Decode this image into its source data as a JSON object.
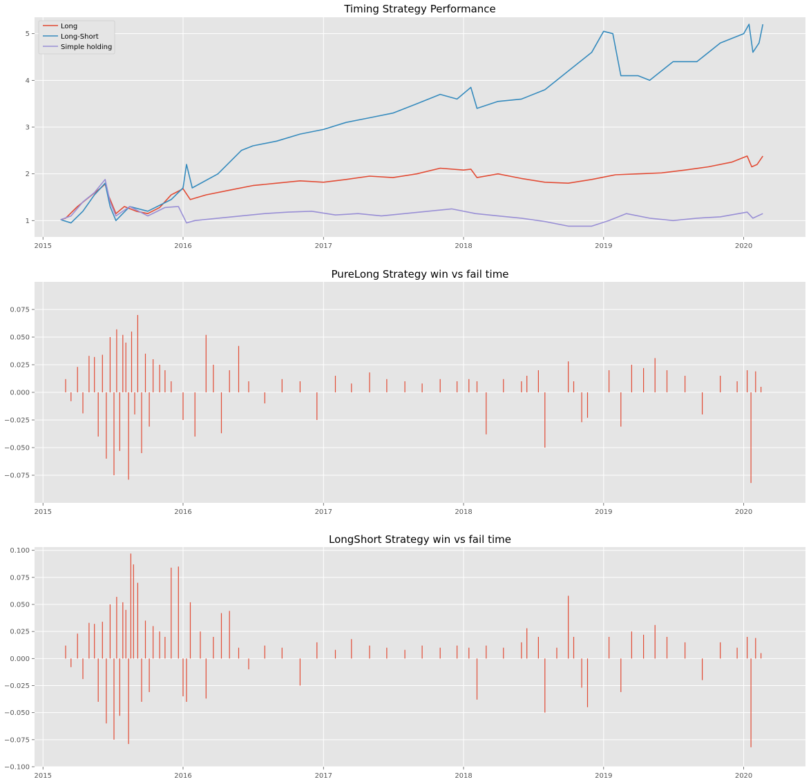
{
  "chart_data": [
    {
      "type": "line",
      "title": "Timing Strategy Performance",
      "xlabel": "",
      "ylabel": "",
      "x_ticks": [
        "2015",
        "2016",
        "2017",
        "2018",
        "2019",
        "2020"
      ],
      "y_ticks": [
        "1",
        "2",
        "3",
        "4",
        "5"
      ],
      "xlim": [
        "2014-12-10",
        "2020-06-10"
      ],
      "ylim": [
        0.65,
        5.35
      ],
      "grid": true,
      "legend": "top-left",
      "series": [
        {
          "name": "Long",
          "color": "#E24A33",
          "x": [
            "2015-02-16",
            "2015-03-01",
            "2015-04-01",
            "2015-05-01",
            "2015-06-01",
            "2015-06-12",
            "2015-06-20",
            "2015-07-10",
            "2015-08-01",
            "2015-09-01",
            "2015-10-01",
            "2015-11-01",
            "2015-12-01",
            "2016-01-01",
            "2016-01-20",
            "2016-03-01",
            "2016-05-01",
            "2016-07-01",
            "2016-09-01",
            "2016-11-01",
            "2017-01-01",
            "2017-03-01",
            "2017-05-01",
            "2017-07-01",
            "2017-09-01",
            "2017-11-01",
            "2018-01-01",
            "2018-01-20",
            "2018-02-05",
            "2018-04-01",
            "2018-06-01",
            "2018-08-01",
            "2018-10-01",
            "2018-12-01",
            "2019-02-01",
            "2019-04-01",
            "2019-06-01",
            "2019-08-01",
            "2019-10-01",
            "2019-12-01",
            "2020-01-10",
            "2020-01-22",
            "2020-02-05",
            "2020-02-20"
          ],
          "y": [
            1.02,
            1.05,
            1.3,
            1.5,
            1.7,
            1.78,
            1.55,
            1.15,
            1.3,
            1.2,
            1.15,
            1.28,
            1.55,
            1.68,
            1.45,
            1.55,
            1.65,
            1.75,
            1.8,
            1.85,
            1.82,
            1.88,
            1.95,
            1.92,
            2.0,
            2.12,
            2.08,
            2.1,
            1.92,
            2.0,
            1.9,
            1.82,
            1.8,
            1.88,
            1.98,
            2.0,
            2.02,
            2.08,
            2.15,
            2.25,
            2.38,
            2.15,
            2.2,
            2.38
          ]
        },
        {
          "name": "Long-Short",
          "color": "#348ABD",
          "x": [
            "2015-02-16",
            "2015-03-15",
            "2015-04-15",
            "2015-05-15",
            "2015-06-12",
            "2015-06-25",
            "2015-07-10",
            "2015-08-15",
            "2015-10-01",
            "2015-12-01",
            "2016-01-01",
            "2016-01-10",
            "2016-01-25",
            "2016-04-01",
            "2016-06-01",
            "2016-07-01",
            "2016-09-01",
            "2016-11-01",
            "2017-01-01",
            "2017-03-01",
            "2017-05-01",
            "2017-07-01",
            "2017-09-01",
            "2017-11-01",
            "2017-12-15",
            "2018-01-20",
            "2018-02-05",
            "2018-04-01",
            "2018-06-01",
            "2018-08-01",
            "2018-10-01",
            "2018-12-01",
            "2019-01-01",
            "2019-01-25",
            "2019-02-15",
            "2019-04-01",
            "2019-05-01",
            "2019-07-01",
            "2019-09-01",
            "2019-11-01",
            "2020-01-01",
            "2020-01-15",
            "2020-01-25",
            "2020-02-10",
            "2020-02-20"
          ],
          "y": [
            1.02,
            0.95,
            1.2,
            1.55,
            1.8,
            1.3,
            1.0,
            1.3,
            1.2,
            1.45,
            1.7,
            2.2,
            1.7,
            2.0,
            2.5,
            2.6,
            2.7,
            2.85,
            2.95,
            3.1,
            3.2,
            3.3,
            3.5,
            3.7,
            3.6,
            3.85,
            3.4,
            3.55,
            3.6,
            3.8,
            4.2,
            4.6,
            5.05,
            5.0,
            4.1,
            4.1,
            4.0,
            4.4,
            4.4,
            4.8,
            5.0,
            5.2,
            4.6,
            4.8,
            5.2
          ]
        },
        {
          "name": "Simple holding",
          "color": "#988ED5",
          "x": [
            "2015-02-16",
            "2015-03-15",
            "2015-04-15",
            "2015-05-15",
            "2015-06-12",
            "2015-06-25",
            "2015-07-10",
            "2015-08-15",
            "2015-10-01",
            "2015-11-15",
            "2015-12-20",
            "2016-01-10",
            "2016-02-01",
            "2016-04-01",
            "2016-06-01",
            "2016-08-01",
            "2016-10-01",
            "2016-12-01",
            "2017-02-01",
            "2017-04-01",
            "2017-06-01",
            "2017-08-01",
            "2017-10-01",
            "2017-12-01",
            "2018-02-01",
            "2018-04-01",
            "2018-06-01",
            "2018-08-01",
            "2018-10-01",
            "2018-12-01",
            "2019-01-15",
            "2019-03-01",
            "2019-05-01",
            "2019-07-01",
            "2019-09-01",
            "2019-11-01",
            "2020-01-10",
            "2020-01-25",
            "2020-02-20"
          ],
          "y": [
            1.02,
            1.1,
            1.4,
            1.6,
            1.88,
            1.4,
            1.1,
            1.3,
            1.1,
            1.28,
            1.3,
            0.95,
            1.0,
            1.05,
            1.1,
            1.15,
            1.18,
            1.2,
            1.12,
            1.15,
            1.1,
            1.15,
            1.2,
            1.25,
            1.15,
            1.1,
            1.05,
            0.98,
            0.88,
            0.88,
            1.0,
            1.15,
            1.05,
            1.0,
            1.05,
            1.08,
            1.18,
            1.05,
            1.15
          ]
        }
      ]
    },
    {
      "type": "bar",
      "title": "PureLong Strategy win vs fail time",
      "xlabel": "",
      "ylabel": "",
      "x_ticks": [
        "2015",
        "2016",
        "2017",
        "2018",
        "2019",
        "2020"
      ],
      "y_ticks": [
        "−0.075",
        "−0.050",
        "−0.025",
        "0.000",
        "0.025",
        "0.050",
        "0.075"
      ],
      "xlim": [
        "2014-12-10",
        "2020-06-10"
      ],
      "ylim": [
        -0.1,
        0.1
      ],
      "grid": true,
      "color": "#E24A33",
      "x": [
        "2015-03-01",
        "2015-03-15",
        "2015-04-01",
        "2015-04-15",
        "2015-05-01",
        "2015-05-15",
        "2015-05-25",
        "2015-06-05",
        "2015-06-15",
        "2015-06-25",
        "2015-07-05",
        "2015-07-12",
        "2015-07-20",
        "2015-07-28",
        "2015-08-05",
        "2015-08-12",
        "2015-08-20",
        "2015-08-28",
        "2015-09-05",
        "2015-09-15",
        "2015-09-25",
        "2015-10-05",
        "2015-10-15",
        "2015-11-01",
        "2015-11-15",
        "2015-12-01",
        "2016-01-01",
        "2016-02-01",
        "2016-03-01",
        "2016-03-20",
        "2016-04-10",
        "2016-05-01",
        "2016-05-25",
        "2016-06-20",
        "2016-08-01",
        "2016-09-15",
        "2016-11-01",
        "2016-12-15",
        "2017-02-01",
        "2017-03-15",
        "2017-05-01",
        "2017-06-15",
        "2017-08-01",
        "2017-09-15",
        "2017-11-01",
        "2017-12-15",
        "2018-01-15",
        "2018-02-05",
        "2018-03-01",
        "2018-04-15",
        "2018-06-01",
        "2018-06-15",
        "2018-07-15",
        "2018-08-01",
        "2018-10-01",
        "2018-10-15",
        "2018-11-05",
        "2018-11-20",
        "2019-01-15",
        "2019-02-15",
        "2019-03-15",
        "2019-04-15",
        "2019-05-15",
        "2019-06-15",
        "2019-08-01",
        "2019-09-15",
        "2019-11-01",
        "2019-12-15",
        "2020-01-10",
        "2020-01-20",
        "2020-02-01",
        "2020-02-15"
      ],
      "values": [
        0.012,
        -0.008,
        0.023,
        -0.019,
        0.033,
        0.032,
        -0.04,
        0.034,
        -0.06,
        0.05,
        -0.075,
        0.057,
        -0.053,
        0.052,
        0.045,
        -0.079,
        0.055,
        -0.02,
        0.07,
        -0.055,
        0.035,
        -0.031,
        0.03,
        0.025,
        0.02,
        0.01,
        -0.025,
        -0.04,
        0.052,
        0.025,
        -0.037,
        0.02,
        0.042,
        0.01,
        -0.01,
        0.012,
        0.01,
        -0.025,
        0.015,
        0.008,
        0.018,
        0.012,
        0.01,
        0.008,
        0.012,
        0.01,
        0.012,
        0.01,
        -0.038,
        0.012,
        0.01,
        0.015,
        0.02,
        -0.05,
        0.028,
        0.01,
        -0.027,
        -0.023,
        0.02,
        -0.031,
        0.025,
        0.022,
        0.031,
        0.02,
        0.015,
        -0.02,
        0.015,
        0.01,
        0.02,
        -0.082,
        0.019,
        0.005
      ]
    },
    {
      "type": "bar",
      "title": "LongShort Strategy win vs fail time",
      "xlabel": "",
      "ylabel": "",
      "x_ticks": [
        "2015",
        "2016",
        "2017",
        "2018",
        "2019",
        "2020"
      ],
      "y_ticks": [
        "−0.100",
        "−0.075",
        "−0.050",
        "−0.025",
        "0.000",
        "0.025",
        "0.050",
        "0.075",
        "0.100"
      ],
      "xlim": [
        "2014-12-10",
        "2020-06-10"
      ],
      "ylim": [
        -0.1,
        0.103
      ],
      "grid": true,
      "color": "#E24A33",
      "x": [
        "2015-03-01",
        "2015-03-15",
        "2015-04-01",
        "2015-04-15",
        "2015-05-01",
        "2015-05-15",
        "2015-05-25",
        "2015-06-05",
        "2015-06-15",
        "2015-06-25",
        "2015-07-05",
        "2015-07-12",
        "2015-07-20",
        "2015-07-28",
        "2015-08-05",
        "2015-08-12",
        "2015-08-18",
        "2015-08-25",
        "2015-09-05",
        "2015-09-15",
        "2015-09-25",
        "2015-10-05",
        "2015-10-15",
        "2015-11-01",
        "2015-11-15",
        "2015-12-01",
        "2015-12-20",
        "2016-01-01",
        "2016-01-10",
        "2016-01-20",
        "2016-02-15",
        "2016-03-01",
        "2016-03-20",
        "2016-04-10",
        "2016-05-01",
        "2016-05-25",
        "2016-06-20",
        "2016-08-01",
        "2016-09-15",
        "2016-11-01",
        "2016-12-15",
        "2017-02-01",
        "2017-03-15",
        "2017-05-01",
        "2017-06-15",
        "2017-08-01",
        "2017-09-15",
        "2017-11-01",
        "2017-12-15",
        "2018-01-15",
        "2018-02-05",
        "2018-03-01",
        "2018-04-15",
        "2018-06-01",
        "2018-06-15",
        "2018-07-15",
        "2018-08-01",
        "2018-09-01",
        "2018-10-01",
        "2018-10-15",
        "2018-11-05",
        "2018-11-20",
        "2019-01-15",
        "2019-02-15",
        "2019-03-15",
        "2019-04-15",
        "2019-05-15",
        "2019-06-15",
        "2019-08-01",
        "2019-09-15",
        "2019-11-01",
        "2019-12-15",
        "2020-01-10",
        "2020-01-20",
        "2020-02-01",
        "2020-02-15"
      ],
      "values": [
        0.012,
        -0.008,
        0.023,
        -0.019,
        0.033,
        0.032,
        -0.04,
        0.034,
        -0.06,
        0.05,
        -0.075,
        0.057,
        -0.053,
        0.052,
        0.045,
        -0.079,
        0.097,
        0.087,
        0.07,
        -0.04,
        0.035,
        -0.031,
        0.03,
        0.025,
        0.02,
        0.084,
        0.085,
        -0.035,
        -0.04,
        0.052,
        0.025,
        -0.037,
        0.02,
        0.042,
        0.044,
        0.01,
        -0.01,
        0.012,
        0.01,
        -0.025,
        0.015,
        0.008,
        0.018,
        0.012,
        0.01,
        0.008,
        0.012,
        0.01,
        0.012,
        0.01,
        -0.038,
        0.012,
        0.01,
        0.015,
        0.028,
        0.02,
        -0.05,
        0.01,
        0.058,
        0.02,
        -0.027,
        -0.045,
        0.02,
        -0.031,
        0.025,
        0.022,
        0.031,
        0.02,
        0.015,
        -0.02,
        0.015,
        0.01,
        0.02,
        -0.082,
        0.019,
        0.005
      ]
    }
  ]
}
